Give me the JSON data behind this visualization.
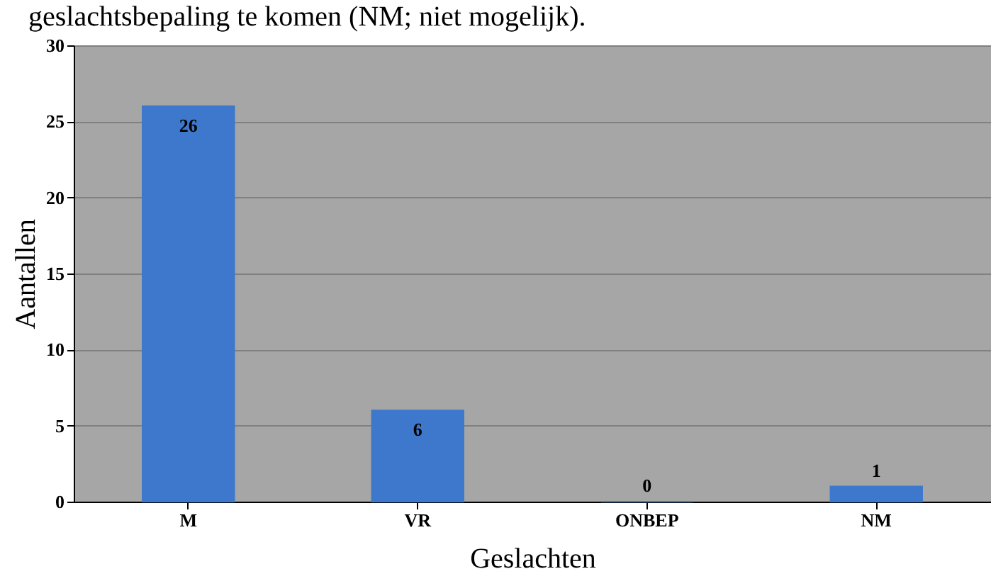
{
  "chart_data": {
    "type": "bar",
    "annotations": [
      "geslachtsbepaling te komen (NM; niet mogelijk)."
    ],
    "xlabel": "Geslachten",
    "ylabel": "Aantallen",
    "categories": [
      "M",
      "VR",
      "ONBEP",
      "NM"
    ],
    "values": [
      26,
      6,
      0,
      1
    ],
    "color": "#3d78cc",
    "ylim": [
      0,
      30
    ],
    "yticks": [
      0,
      5,
      10,
      15,
      20,
      25,
      30
    ],
    "grid": "y",
    "data_labels": true
  }
}
